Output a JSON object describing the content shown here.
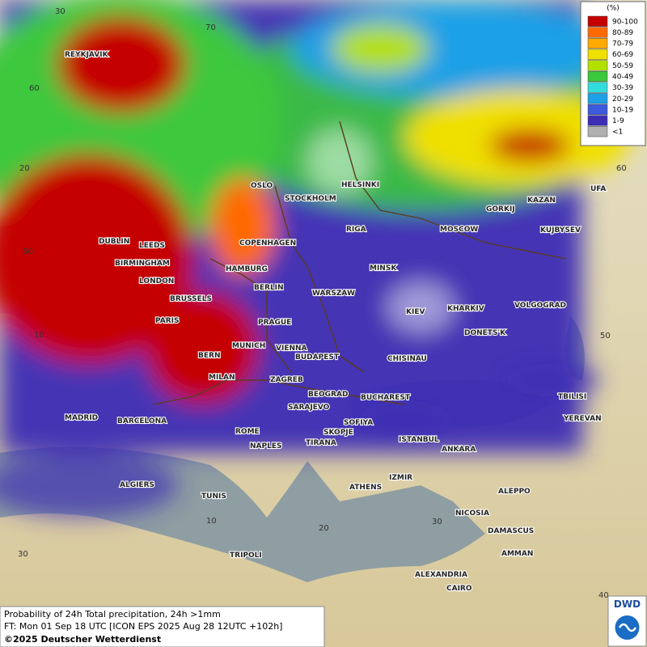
{
  "legend": {
    "unit": "(%)",
    "items": [
      {
        "label": "90-100",
        "color": "#c40000"
      },
      {
        "label": "80-89",
        "color": "#ff6a00"
      },
      {
        "label": "70-79",
        "color": "#ffaa00"
      },
      {
        "label": "60-69",
        "color": "#f0e000"
      },
      {
        "label": "50-59",
        "color": "#b4e000"
      },
      {
        "label": "40-49",
        "color": "#3cc83c"
      },
      {
        "label": "30-39",
        "color": "#33dcdc"
      },
      {
        "label": "20-29",
        "color": "#1ea0e6"
      },
      {
        "label": "10-19",
        "color": "#3c5adc"
      },
      {
        "label": "1-9",
        "color": "#3c2db4"
      },
      {
        "label": "<1",
        "color": "#b0b0b0"
      }
    ]
  },
  "cities": [
    "REYKJAVIK",
    "OSLO",
    "STOCKHOLM",
    "HELSINKI",
    "RIGA",
    "MOSCOW",
    "GORKIJ",
    "KAZAN",
    "UFA",
    "KUJBYSEV",
    "DUBLIN",
    "LEEDS",
    "COPENHAGEN",
    "HAMBURG",
    "BIRMINGHAM",
    "MINSK",
    "LONDON",
    "BERLIN",
    "WARSZAW",
    "BRUSSELS",
    "KIEV",
    "KHARKIV",
    "VOLGOGRAD",
    "PARIS",
    "PRAGUE",
    "DONETS'K",
    "MUNICH",
    "VIENNA",
    "BERN",
    "BUDAPEST",
    "CHISINAU",
    "MILAN",
    "ZAGREB",
    "BEOGRAD",
    "BUCHAREST",
    "TBILISI",
    "MADRID",
    "BARCELONA",
    "SARAJEVO",
    "SOFIYA",
    "YEREVAN",
    "ROME",
    "NAPLES",
    "SKOPJE",
    "TIRANA",
    "ISTANBUL",
    "ANKARA",
    "IZMIR",
    "ALGIERS",
    "ATHENS",
    "ALEPPO",
    "TUNIS",
    "NICOSIA",
    "DAMASCUS",
    "AMMAN",
    "TRIPOLI",
    "ALEXANDRIA",
    "CAIRO"
  ],
  "grid_labels": [
    30,
    70,
    60,
    20,
    50,
    10,
    60,
    50,
    10,
    20,
    30,
    40,
    30
  ],
  "footer": {
    "line1": "Probability of 24h Total precipitation, 24h >1mm",
    "line2": "FT: Mon 01 Sep 18 UTC [ICON EPS 2025 Aug 28 12UTC +102h]",
    "line3": "©2025 Deutscher Wetterdienst"
  },
  "logo": "DWD"
}
